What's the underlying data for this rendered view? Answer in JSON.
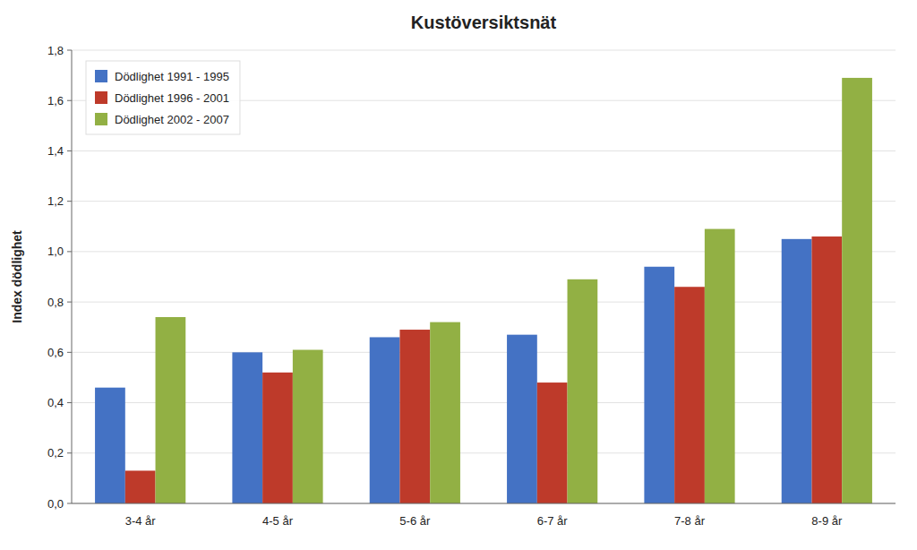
{
  "chart_data": {
    "type": "bar",
    "title": "Kustöversiktsnät",
    "ylabel": "Index dödlighet",
    "categories": [
      "3-4 år",
      "4-5 år",
      "5-6 år",
      "6-7 år",
      "7-8 år",
      "8-9 år"
    ],
    "series": [
      {
        "name": "Dödlighet 1991 - 1995",
        "color": "#4472C4",
        "values": [
          0.46,
          0.6,
          0.66,
          0.67,
          0.94,
          1.05
        ]
      },
      {
        "name": "Dödlighet 1996 - 2001",
        "color": "#BE3A2A",
        "values": [
          0.13,
          0.52,
          0.69,
          0.48,
          0.86,
          1.06
        ]
      },
      {
        "name": "Dödlighet 2002 - 2007",
        "color": "#92B044",
        "values": [
          0.74,
          0.61,
          0.72,
          0.89,
          1.09,
          1.69
        ]
      }
    ],
    "ylim": [
      0,
      1.8
    ],
    "yticks": [
      {
        "value": 0.0,
        "label": "0,0"
      },
      {
        "value": 0.2,
        "label": "0,2"
      },
      {
        "value": 0.4,
        "label": "0,4"
      },
      {
        "value": 0.6,
        "label": "0,6"
      },
      {
        "value": 0.8,
        "label": "0,8"
      },
      {
        "value": 1.0,
        "label": "1,0"
      },
      {
        "value": 1.2,
        "label": "1,2"
      },
      {
        "value": 1.4,
        "label": "1,4"
      },
      {
        "value": 1.6,
        "label": "1,6"
      },
      {
        "value": 1.8,
        "label": "1,8"
      }
    ],
    "grid": true,
    "legend": "upper left"
  }
}
